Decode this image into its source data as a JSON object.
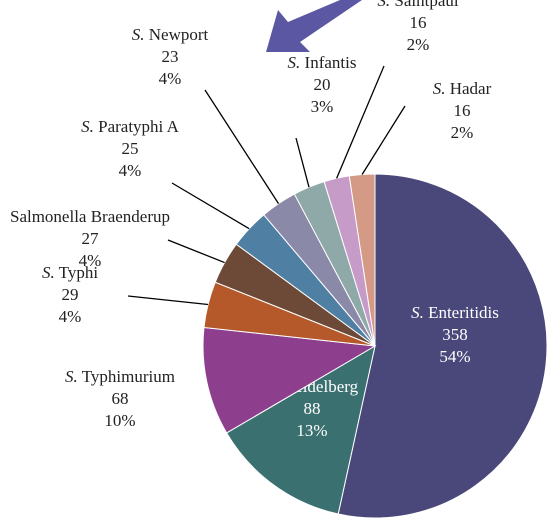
{
  "chart_data": {
    "type": "pie",
    "categories": [
      "S. Enteritidis",
      "S. Heidelberg",
      "S. Typhimurium",
      "S. Typhi",
      "Salmonella Braenderup",
      "S. Paratyphi A",
      "S. Newport",
      "S. Infantis",
      "S. Saintpaul",
      "S. Hadar"
    ],
    "values": [
      358,
      88,
      68,
      29,
      27,
      25,
      23,
      20,
      16,
      16
    ],
    "percents": [
      54,
      13,
      10,
      4,
      4,
      4,
      4,
      3,
      2,
      2
    ],
    "percent_labels": [
      "54%",
      "13%",
      "10%",
      "4%",
      "4%",
      "4%",
      "4%",
      "3%",
      "2%",
      "2%"
    ],
    "colors": [
      "#4a477a",
      "#3a7070",
      "#8d3f8d",
      "#b5582a",
      "#6c4a37",
      "#4f7fa3",
      "#8b89a8",
      "#8fa9a8",
      "#c79bc8",
      "#d49a86"
    ]
  }
}
